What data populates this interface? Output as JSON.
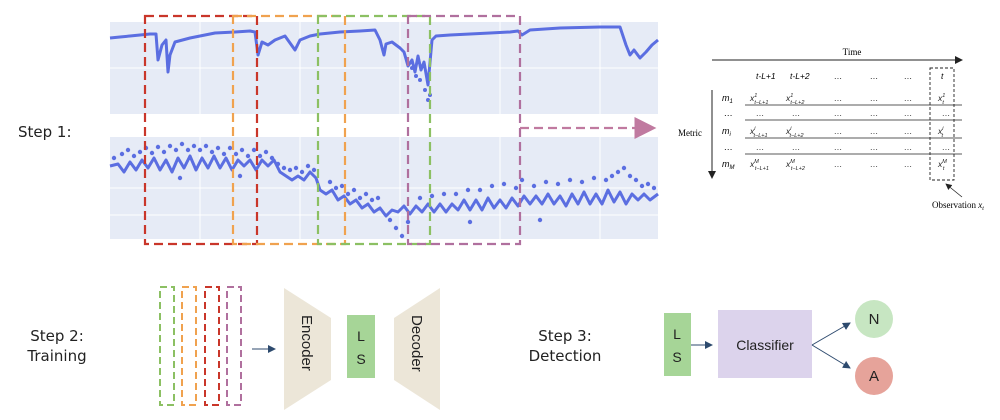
{
  "steps": {
    "step1": "Step 1:",
    "step2": "Step 2:",
    "step2_sub": "Training",
    "step3": "Step 3:",
    "step3_sub": "Detection"
  },
  "matrix": {
    "time_label": "Time",
    "metric_label": "Metric",
    "observation_label": "Observation",
    "observation_symbol": "x",
    "observation_sub": "t",
    "col_headers": [
      "t-L+1",
      "t-L+2",
      "…",
      "…",
      "…",
      "t"
    ],
    "row_labels": [
      {
        "m": "m",
        "sub": "1"
      },
      {
        "m": "…",
        "sub": ""
      },
      {
        "m": "m",
        "sub": "i"
      },
      {
        "m": "…",
        "sub": ""
      },
      {
        "m": "m",
        "sub": "M"
      }
    ]
  },
  "model": {
    "encoder": "Encoder",
    "latent_top": "L",
    "latent_bottom": "S",
    "decoder": "Decoder"
  },
  "detection": {
    "latent_top": "L",
    "latent_bottom": "S",
    "classifier": "Classifier",
    "normal": "N",
    "anomaly": "A"
  },
  "colors": {
    "series": "#5b6ee1",
    "panel_bg": "#e6ebf6",
    "win_red": "#c9362a",
    "win_orange": "#f0a24f",
    "win_green": "#8cc063",
    "win_purple": "#b0709e",
    "arrow_pink": "#c07aa0",
    "shape_beige": "#ece6d8",
    "latent_green": "#a6d597",
    "classifier_purple": "#dcd3ec",
    "normal_green": "#c7e6c2",
    "anomaly_red": "#e6a39a"
  }
}
